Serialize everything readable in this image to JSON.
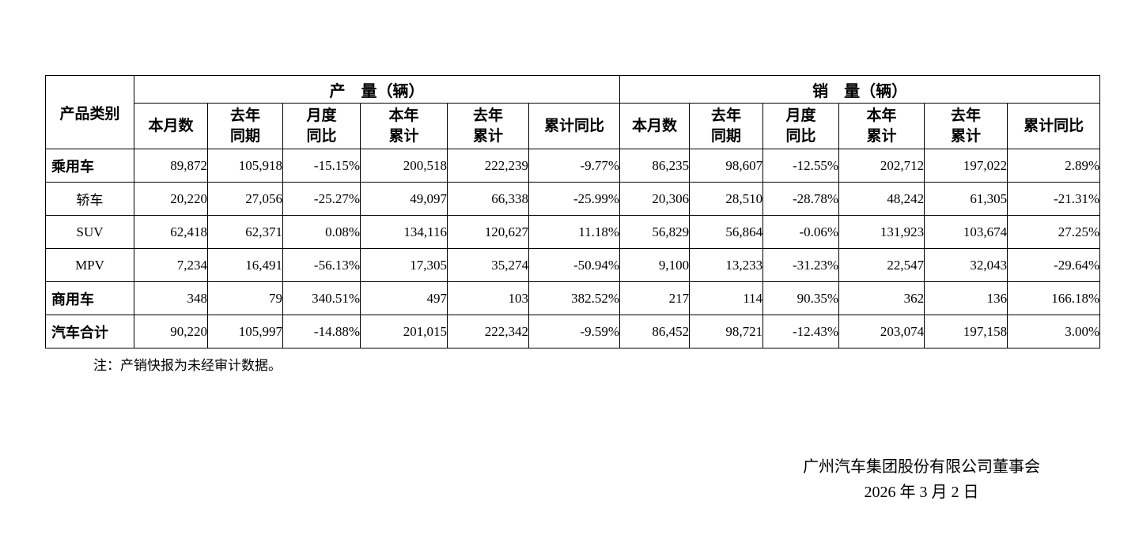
{
  "table": {
    "category_header": "产品类别",
    "production_group": "产　量（辆）",
    "sales_group": "销　量（辆）",
    "sub_headers": [
      "本月数",
      "去年\n同期",
      "月度\n同比",
      "本年\n累计",
      "去年\n累计",
      "累计同比"
    ],
    "rows": [
      {
        "label": "乘用车",
        "emphasis": true,
        "production": [
          "89,872",
          "105,918",
          "-15.15%",
          "200,518",
          "222,239",
          "-9.77%"
        ],
        "sales": [
          "86,235",
          "98,607",
          "-12.55%",
          "202,712",
          "197,022",
          "2.89%"
        ]
      },
      {
        "label": "轿车",
        "emphasis": false,
        "production": [
          "20,220",
          "27,056",
          "-25.27%",
          "49,097",
          "66,338",
          "-25.99%"
        ],
        "sales": [
          "20,306",
          "28,510",
          "-28.78%",
          "48,242",
          "61,305",
          "-21.31%"
        ]
      },
      {
        "label": "SUV",
        "emphasis": false,
        "production": [
          "62,418",
          "62,371",
          "0.08%",
          "134,116",
          "120,627",
          "11.18%"
        ],
        "sales": [
          "56,829",
          "56,864",
          "-0.06%",
          "131,923",
          "103,674",
          "27.25%"
        ]
      },
      {
        "label": "MPV",
        "emphasis": false,
        "production": [
          "7,234",
          "16,491",
          "-56.13%",
          "17,305",
          "35,274",
          "-50.94%"
        ],
        "sales": [
          "9,100",
          "13,233",
          "-31.23%",
          "22,547",
          "32,043",
          "-29.64%"
        ]
      },
      {
        "label": "商用车",
        "emphasis": true,
        "production": [
          "348",
          "79",
          "340.51%",
          "497",
          "103",
          "382.52%"
        ],
        "sales": [
          "217",
          "114",
          "90.35%",
          "362",
          "136",
          "166.18%"
        ]
      },
      {
        "label": "汽车合计",
        "emphasis": true,
        "production": [
          "90,220",
          "105,997",
          "-14.88%",
          "201,015",
          "222,342",
          "-9.59%"
        ],
        "sales": [
          "86,452",
          "98,721",
          "-12.43%",
          "203,074",
          "197,158",
          "3.00%"
        ]
      }
    ]
  },
  "note": "注：产销快报为未经审计数据。",
  "signature": {
    "company": "广州汽车集团股份有限公司董事会",
    "date": "2026 年 3 月 2 日"
  }
}
